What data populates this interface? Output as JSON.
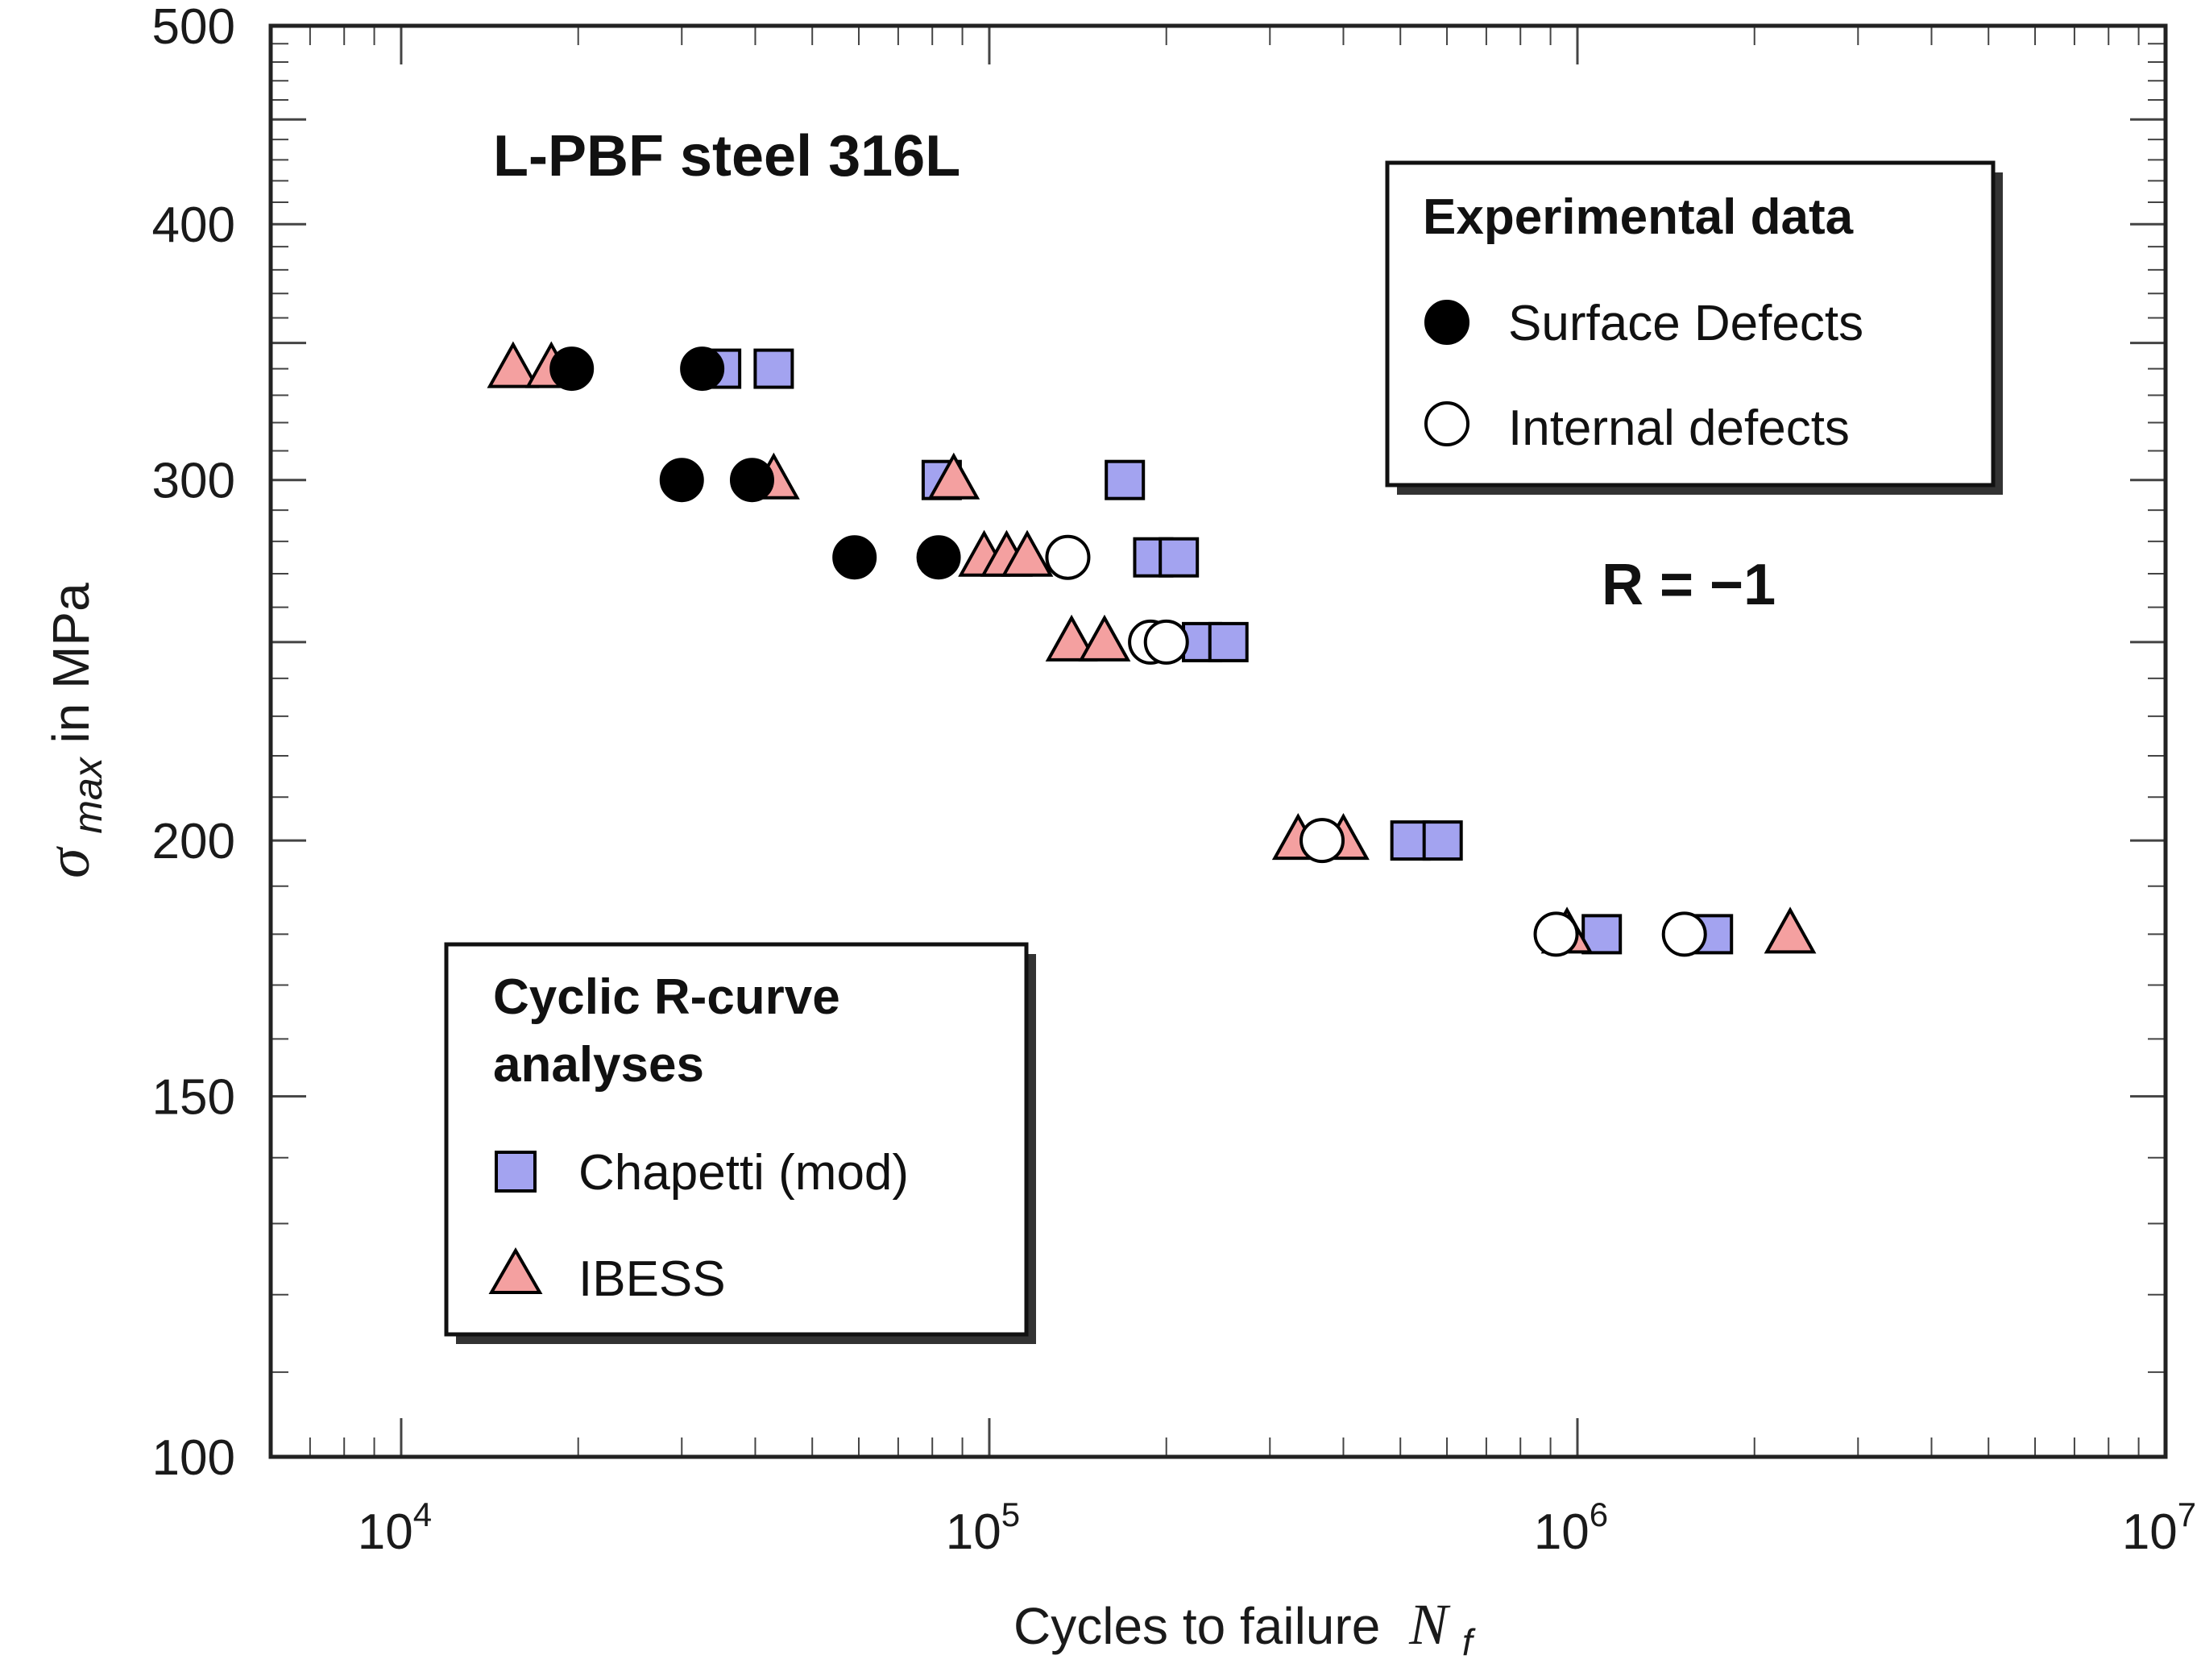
{
  "chart_data": {
    "type": "scatter",
    "title": "L-PBF steel 316L",
    "annotation": "R = −1",
    "xlabel": "Cycles to failure",
    "xlabel_symbol": "N",
    "xlabel_sub": "f",
    "ylabel_symbol": "σ",
    "ylabel_sub": "max",
    "ylabel": " in MPa",
    "xscale": "log",
    "yscale": "log",
    "xlim": [
      6000,
      10000000
    ],
    "ylim": [
      100,
      500
    ],
    "x_ticks": [
      {
        "value": 10000,
        "base": "10",
        "exp": "4"
      },
      {
        "value": 100000,
        "base": "10",
        "exp": "5"
      },
      {
        "value": 1000000,
        "base": "10",
        "exp": "6"
      },
      {
        "value": 10000000,
        "base": "10",
        "exp": "7"
      }
    ],
    "y_ticks": [
      {
        "value": 100,
        "label": "100"
      },
      {
        "value": 150,
        "label": "150"
      },
      {
        "value": 200,
        "label": "200"
      },
      {
        "value": 300,
        "label": "300"
      },
      {
        "value": 400,
        "label": "400"
      },
      {
        "value": 500,
        "label": "500"
      }
    ],
    "legends": [
      {
        "title_lines": [
          "Experimental data"
        ],
        "position": "top-right",
        "entries": [
          {
            "series": "Surface Defects",
            "marker": "filled-circle"
          },
          {
            "series": "Internal defects",
            "marker": "open-circle"
          }
        ]
      },
      {
        "title_lines": [
          "Cyclic R-curve",
          "analyses"
        ],
        "position": "bottom-left",
        "entries": [
          {
            "series": "Chapetti (mod)",
            "marker": "square"
          },
          {
            "series": "IBESS",
            "marker": "triangle"
          }
        ]
      }
    ],
    "colors": {
      "square_fill": "#a3a3f0",
      "triangle_fill": "#f4a0a0",
      "marker_stroke": "#000000",
      "circle_fill": "#000000",
      "open_circle_fill": "#ffffff"
    },
    "series": [
      {
        "name": "Chapetti (mod)",
        "marker": "square",
        "points": [
          {
            "x": 35000,
            "y": 340
          },
          {
            "x": 43000,
            "y": 340
          },
          {
            "x": 83000,
            "y": 300
          },
          {
            "x": 170000,
            "y": 300
          },
          {
            "x": 190000,
            "y": 275
          },
          {
            "x": 210000,
            "y": 275
          },
          {
            "x": 230000,
            "y": 250
          },
          {
            "x": 255000,
            "y": 250
          },
          {
            "x": 520000,
            "y": 200
          },
          {
            "x": 590000,
            "y": 200
          },
          {
            "x": 1100000,
            "y": 180
          },
          {
            "x": 1700000,
            "y": 180
          }
        ]
      },
      {
        "name": "IBESS",
        "marker": "triangle",
        "points": [
          {
            "x": 15500,
            "y": 340
          },
          {
            "x": 18000,
            "y": 340
          },
          {
            "x": 43000,
            "y": 300
          },
          {
            "x": 87000,
            "y": 300
          },
          {
            "x": 98000,
            "y": 275
          },
          {
            "x": 107000,
            "y": 275
          },
          {
            "x": 116000,
            "y": 275
          },
          {
            "x": 138000,
            "y": 250
          },
          {
            "x": 157000,
            "y": 250
          },
          {
            "x": 335000,
            "y": 200
          },
          {
            "x": 400000,
            "y": 200
          },
          {
            "x": 960000,
            "y": 180
          },
          {
            "x": 2300000,
            "y": 180
          }
        ]
      },
      {
        "name": "Surface Defects",
        "marker": "filled-circle",
        "points": [
          {
            "x": 19500,
            "y": 340
          },
          {
            "x": 32500,
            "y": 340
          },
          {
            "x": 30000,
            "y": 300
          },
          {
            "x": 39500,
            "y": 300
          },
          {
            "x": 59000,
            "y": 275
          },
          {
            "x": 82000,
            "y": 275
          }
        ]
      },
      {
        "name": "Internal defects",
        "marker": "open-circle",
        "points": [
          {
            "x": 136000,
            "y": 275
          },
          {
            "x": 188000,
            "y": 250
          },
          {
            "x": 200000,
            "y": 250
          },
          {
            "x": 368000,
            "y": 200
          },
          {
            "x": 920000,
            "y": 180
          },
          {
            "x": 1520000,
            "y": 180
          }
        ]
      }
    ]
  }
}
